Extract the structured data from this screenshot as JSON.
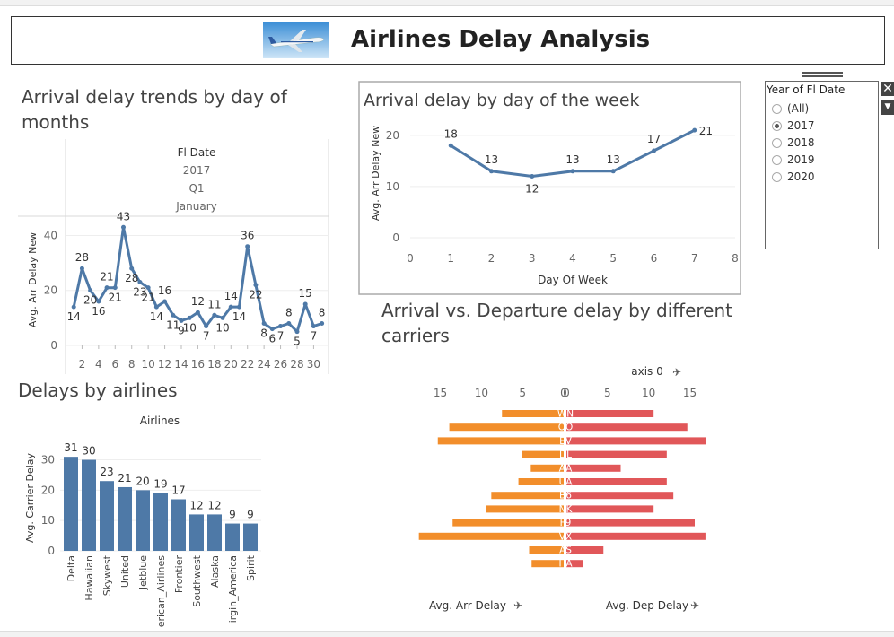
{
  "header": {
    "title": "Airlines Delay Analysis"
  },
  "trend": {
    "title_line1": "Arrival delay trends by day of",
    "title_line2": "months",
    "col_header": "Fl Date",
    "col_year": "2017",
    "col_quarter": "Q1",
    "col_month": "January",
    "ylabel": "Avg. Arr Delay New"
  },
  "weekday": {
    "title": "Arrival delay by day of the week",
    "ylabel": "Avg. Arr Delay New",
    "xlabel": "Day Of Week"
  },
  "airlines": {
    "title": "Delays by airlines",
    "col_header": "Airlines",
    "ylabel": "Avg. Carrier Delay"
  },
  "carriers": {
    "title_line1": "Arrival vs. Departure delay by different",
    "title_line2": "carriers",
    "axis_label": "axis 0",
    "left_label": "Avg. Arr Delay",
    "right_label": "Avg. Dep Delay",
    "pin_icon": "pin-icon",
    "arr_color": "#f28e2b",
    "dep_color": "#e15759"
  },
  "filter": {
    "title": "Year of Fl Date",
    "options": [
      "(All)",
      "2017",
      "2018",
      "2019",
      "2020"
    ],
    "selected": "2017",
    "close_label": "✕",
    "dropdown_label": "▼"
  },
  "chart_data": [
    {
      "type": "line",
      "title": "Arrival delay trends by day of months",
      "ylabel": "Avg. Arr Delay New",
      "x": [
        1,
        2,
        3,
        4,
        5,
        6,
        7,
        8,
        9,
        10,
        11,
        12,
        13,
        14,
        15,
        16,
        17,
        18,
        19,
        20,
        21,
        22,
        23,
        24,
        25,
        26,
        27,
        28,
        29,
        30,
        31
      ],
      "values": [
        14,
        28,
        20,
        16,
        21,
        21,
        43,
        28,
        23,
        21,
        14,
        16,
        11,
        9,
        10,
        12,
        7,
        11,
        10,
        14,
        14,
        36,
        22,
        8,
        6,
        7,
        8,
        5,
        15,
        7,
        8
      ],
      "xticks": [
        2,
        4,
        6,
        8,
        10,
        12,
        14,
        16,
        18,
        20,
        22,
        24,
        26,
        28,
        30
      ],
      "yticks": [
        0,
        20,
        40
      ],
      "ylim": [
        0,
        47
      ],
      "xlim": [
        0,
        31.8
      ],
      "color": "#4e79a7"
    },
    {
      "type": "line",
      "title": "Arrival delay by day of the week",
      "xlabel": "Day Of Week",
      "ylabel": "Avg. Arr Delay New",
      "x": [
        1,
        2,
        3,
        4,
        5,
        6,
        7
      ],
      "values": [
        18,
        13,
        12,
        13,
        13,
        17,
        21
      ],
      "xticks": [
        0,
        1,
        2,
        3,
        4,
        5,
        6,
        7,
        8
      ],
      "yticks": [
        0,
        10,
        20
      ],
      "xlim": [
        0,
        8
      ],
      "ylim": [
        0,
        20.5
      ],
      "color": "#4e79a7"
    },
    {
      "type": "bar",
      "title": "Delays by airlines",
      "ylabel": "Avg. Carrier Delay",
      "categories": [
        "Delta",
        "Hawaiian",
        "Skywest",
        "United",
        "Jetblue",
        "American_Airlines",
        "Frontier",
        "Southwest",
        "Alaska",
        "Virgin_America",
        "Spirit"
      ],
      "category_labels": [
        "Delta",
        "Hawaiian",
        "Skywest",
        "United",
        "Jetblue",
        "erican_Airlines",
        "Frontier",
        "Southwest",
        "Alaska",
        "irgin_America",
        "Spirit"
      ],
      "values": [
        31,
        30,
        23,
        21,
        20,
        19,
        17,
        12,
        12,
        9,
        9
      ],
      "yticks": [
        0,
        10,
        20,
        30
      ],
      "ylim": [
        0,
        34
      ],
      "color": "#4e79a7"
    },
    {
      "type": "bar",
      "title": "Arrival vs. Departure delay by different carriers",
      "categories": [
        "WN",
        "OO",
        "EV",
        "DL",
        "AA",
        "UA",
        "B6",
        "NK",
        "F9",
        "VX",
        "AS",
        "HA"
      ],
      "series": [
        {
          "name": "Avg. Arr Delay",
          "values": [
            7.5,
            13.9,
            15.3,
            5.1,
            4.0,
            5.5,
            8.8,
            9.4,
            13.5,
            17.6,
            4.2,
            3.9
          ],
          "color": "#f28e2b"
        },
        {
          "name": "Avg. Dep Delay",
          "values": [
            10.6,
            14.7,
            17.0,
            12.2,
            6.6,
            12.2,
            13.0,
            10.6,
            15.6,
            16.9,
            4.5,
            2.0
          ],
          "color": "#e15759"
        }
      ],
      "xticks_left": [
        15,
        10,
        5,
        0
      ],
      "xticks_right": [
        0,
        5,
        10,
        15
      ],
      "xlim": [
        0,
        18
      ]
    }
  ]
}
